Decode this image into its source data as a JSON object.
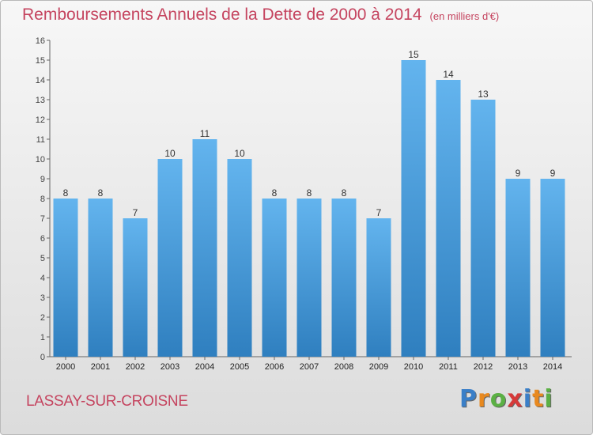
{
  "title": "Remboursements Annuels de la Dette de 2000 à 2014",
  "title_unit": "(en milliers d'€)",
  "commune": "LASSAY-SUR-CROISNE",
  "brand": {
    "letters": [
      "P",
      "r",
      "o",
      "x",
      "i",
      "t",
      "i"
    ],
    "colors": [
      "#3a7fc8",
      "#e8891f",
      "#5bb044",
      "#d63a3a",
      "#3a7fc8",
      "#e8891f",
      "#5bb044"
    ]
  },
  "colors": {
    "bar_light": "#63b4ee",
    "bar_dark": "#2f7fbf",
    "title": "#c5445f"
  },
  "chart_data": {
    "type": "bar",
    "title": "Remboursements Annuels de la Dette de 2000 à 2014",
    "subtitle": "(en milliers d'€)",
    "categories": [
      "2000",
      "2001",
      "2002",
      "2003",
      "2004",
      "2005",
      "2006",
      "2007",
      "2008",
      "2009",
      "2010",
      "2011",
      "2012",
      "2013",
      "2014"
    ],
    "values": [
      8,
      8,
      7,
      10,
      11,
      10,
      8,
      8,
      8,
      7,
      15,
      14,
      13,
      9,
      9
    ],
    "xlabel": "",
    "ylabel": "",
    "ylim": [
      0,
      16
    ],
    "yticks": [
      0,
      1,
      2,
      3,
      4,
      5,
      6,
      7,
      8,
      9,
      10,
      11,
      12,
      13,
      14,
      15,
      16
    ],
    "grid": false,
    "data_labels": true
  }
}
